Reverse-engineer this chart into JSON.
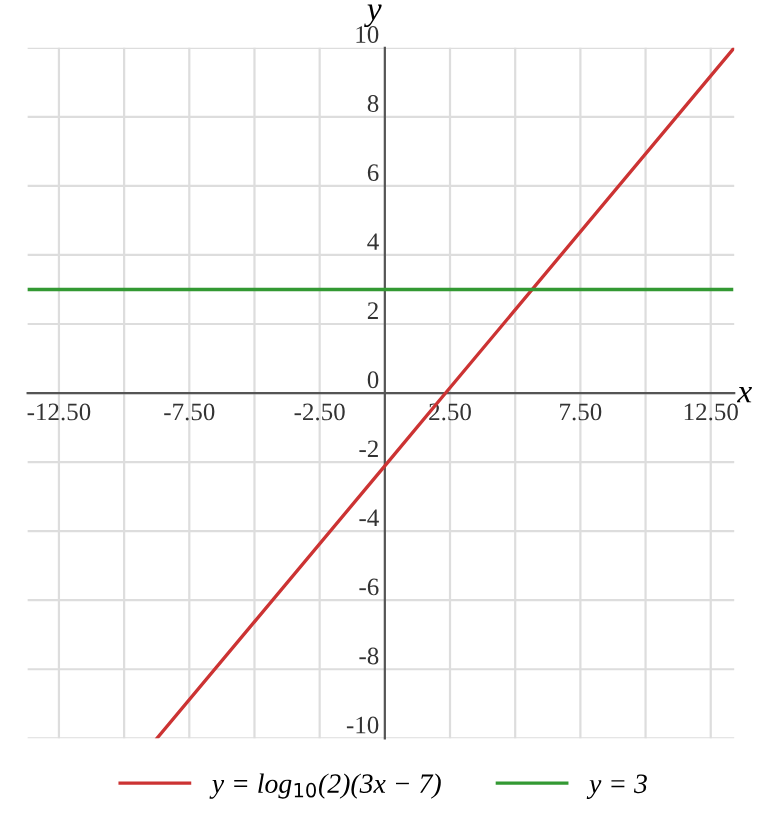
{
  "chart_data": {
    "type": "line",
    "xlabel": "x",
    "ylabel": "y",
    "series": [
      {
        "name": "y = log$_{10}$(2)(3x − 7)",
        "color": "#cc3333",
        "x": [
          -8.74,
          0,
          2.33,
          13.4
        ],
        "values": [
          -10,
          -2.11,
          0,
          10
        ]
      },
      {
        "name": "y = 3",
        "color": "#339933",
        "x": [
          -13.7,
          13.3
        ],
        "values": [
          3,
          3
        ]
      }
    ],
    "xlim": [
      -13.7,
      13.4
    ],
    "ylim": [
      -10,
      10
    ],
    "xticks": [
      {
        "value": -12.5,
        "label": "-12.50"
      },
      {
        "value": -10,
        "label": null
      },
      {
        "value": -7.5,
        "label": "-7.50"
      },
      {
        "value": -5,
        "label": null
      },
      {
        "value": -2.5,
        "label": "-2.50"
      },
      {
        "value": 2.5,
        "label": "2.50"
      },
      {
        "value": 5,
        "label": null
      },
      {
        "value": 7.5,
        "label": "7.50"
      },
      {
        "value": 10,
        "label": null
      },
      {
        "value": 12.5,
        "label": "12.50"
      }
    ],
    "yticks": [
      -10,
      -8,
      -6,
      -4,
      -2,
      0,
      2,
      4,
      6,
      8,
      10
    ],
    "grid": true,
    "legend": "bottom",
    "marker": "none",
    "line_style": "solid"
  }
}
